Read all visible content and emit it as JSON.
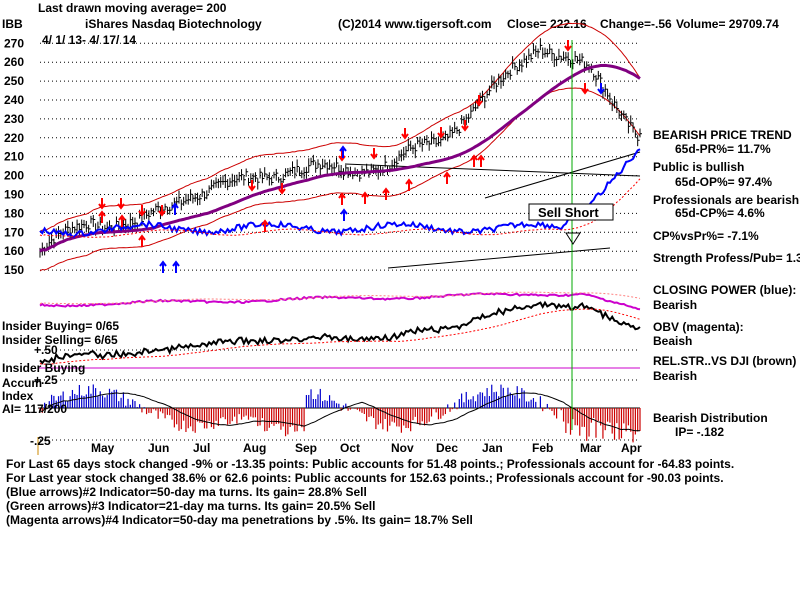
{
  "header": {
    "ma_note": "Last drawn moving average= 200",
    "ticker": "IBB",
    "name": "iShares Nasdaq Biotechnology",
    "date_range": "4/ 1/ 13- 4/ 17/ 14",
    "source": "(C)2014 www.tigersoft.com",
    "close": "Close=  222.16",
    "change": "Change=-.56",
    "volume": "Volume= 29709.74"
  },
  "right_labels": [
    "BEARISH PRICE TREND",
    "65d-PR%= 11.7%",
    "Public is bullish",
    "65d-OP%= 97.4%",
    "Professionals are bearish",
    "65d-CP%= 4.6%",
    "CP%vsPr%= -7.1%",
    "Strength Profess/Pub= 1.3",
    "CLOSING POWER (blue):",
    "Bearish",
    "OBV (magenta):",
    "Beaish",
    "REL.STR..VS DJI (brown)",
    "Bearish",
    "Bearish Distribution",
    "IP= -.182"
  ],
  "left_labels": {
    "insider_buying_count": "Insider Buying= 0/65",
    "insider_selling_count": "Insider Selling= 6/65",
    "plus50": "+.50",
    "insider_buying": "Insider Buying",
    "plus25": "+.25",
    "accum": "Accum",
    "index": "Index",
    "ai": "AI= 117/200",
    "minus25": "-.25"
  },
  "annotation": "Sell Short",
  "footer_lines": [
    "For Last 65 days stock changed -9% or -13.35 points:  Public accounts for  51.48 points.;  Professionals account for  -64.83 points.",
    "For Last year stock changed  38.6% or  62.6 points:  Public accounts for  152.63 points.;  Professionals account for  -90.03 points.",
    "(Blue arrows)#2 Indicator=50-day ma turns.  Its gain= 28.8% Sell",
    "(Green arrows)#3 Indicator=21-day ma turns.  Its gain= 20.5% Sell",
    "(Magenta arrows)#4 Indicator=50-day ma penetrations by .5%.  Its gain= 18.7% Sell"
  ],
  "colors": {
    "price": "#000000",
    "band": "#cc0000",
    "ma50": "#800080",
    "closing_power": "#0000ff",
    "obv": "#cc00cc",
    "rel_str": "#000000",
    "accum_pos": "#0000cc",
    "accum_neg": "#cc0000",
    "sell_line": "#00aa00",
    "arrow_down": "#ff0000",
    "arrow_up_blue": "#0000ff",
    "arrow_up_red": "#ff0000"
  },
  "chart_data": {
    "type": "line",
    "ticker": "IBB",
    "title": "iShares Nasdaq Biotechnology",
    "x_tick_labels": [
      "May",
      "Jun",
      "Jul",
      "Aug",
      "Sep",
      "Oct",
      "Nov",
      "Dec",
      "Jan",
      "Feb",
      "Mar",
      "Apr"
    ],
    "y_tick_labels": [
      150,
      160,
      170,
      180,
      190,
      200,
      210,
      220,
      230,
      240,
      250,
      260,
      270
    ],
    "ylim": [
      143,
      278
    ],
    "price_series": {
      "name": "IBB price",
      "points": [
        [
          "Apr 2013",
          160
        ],
        [
          "May 2013",
          176
        ],
        [
          "Jun 2013",
          174
        ],
        [
          "Jul 2013",
          191
        ],
        [
          "Aug 2013",
          196
        ],
        [
          "Sep 2013",
          204
        ],
        [
          "Oct 2013",
          203
        ],
        [
          "Nov 2013",
          206
        ],
        [
          "Dec 2013",
          219
        ],
        [
          "Jan 2014",
          243
        ],
        [
          "Feb 2014",
          270
        ],
        [
          "Mar 2014",
          255
        ],
        [
          "Apr 2014",
          222.16
        ]
      ]
    },
    "moving_average": 200,
    "sell_short_date": "Feb 2014",
    "accum_index_ticks": [
      "+.50",
      "+.25",
      "-.25"
    ]
  }
}
